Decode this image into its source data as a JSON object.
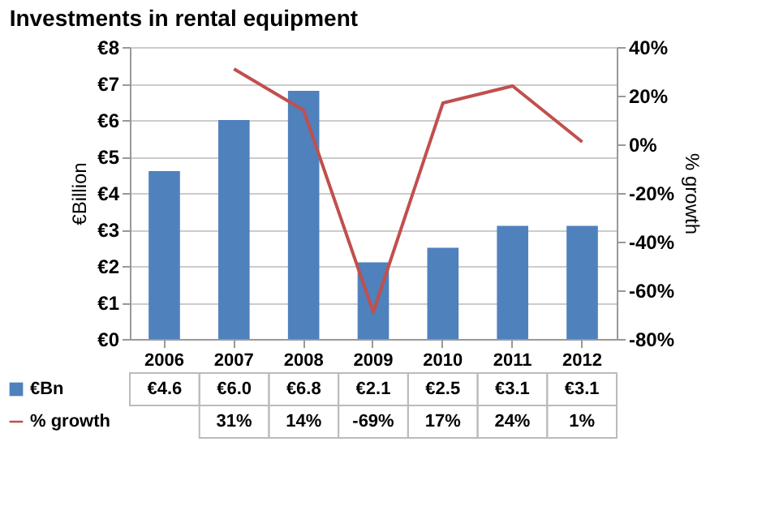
{
  "chart_data": {
    "type": "bar",
    "title": "Investments in rental equipment",
    "categories": [
      "2006",
      "2007",
      "2008",
      "2009",
      "2010",
      "2011",
      "2012"
    ],
    "series": [
      {
        "name": "€Bn",
        "color": "#4f81bd",
        "values": [
          4.6,
          6.0,
          6.8,
          2.1,
          2.5,
          3.1,
          3.1
        ],
        "value_labels": [
          "€4.6",
          "€6.0",
          "€6.8",
          "€2.1",
          "€2.5",
          "€3.1",
          "€3.1"
        ]
      },
      {
        "name": "% growth",
        "type": "line",
        "axis": "y2",
        "color": "#c0504d",
        "values": [
          null,
          31,
          14,
          -69,
          17,
          24,
          1
        ],
        "value_labels": [
          null,
          "31%",
          "14%",
          "-69%",
          "17%",
          "24%",
          "1%"
        ]
      }
    ],
    "ylabel": "€Billion",
    "y2label": "% growth",
    "ylim": [
      0,
      8
    ],
    "yticks": [
      {
        "value": 0,
        "label": "€0"
      },
      {
        "value": 1,
        "label": "€1"
      },
      {
        "value": 2,
        "label": "€2"
      },
      {
        "value": 3,
        "label": "€3"
      },
      {
        "value": 4,
        "label": "€4"
      },
      {
        "value": 5,
        "label": "€5"
      },
      {
        "value": 6,
        "label": "€6"
      },
      {
        "value": 7,
        "label": "€7"
      },
      {
        "value": 8,
        "label": "€8"
      }
    ],
    "y2lim": [
      -80,
      40
    ],
    "y2ticks": [
      {
        "value": -80,
        "label": "-80%"
      },
      {
        "value": -60,
        "label": "-60%"
      },
      {
        "value": -40,
        "label": "-40%"
      },
      {
        "value": -20,
        "label": "-20%"
      },
      {
        "value": 0,
        "label": "0%"
      },
      {
        "value": 20,
        "label": "20%"
      },
      {
        "value": 40,
        "label": "40%"
      }
    ],
    "grid": "y",
    "legend": "bottom",
    "marker": "none",
    "line_style": "solid"
  }
}
